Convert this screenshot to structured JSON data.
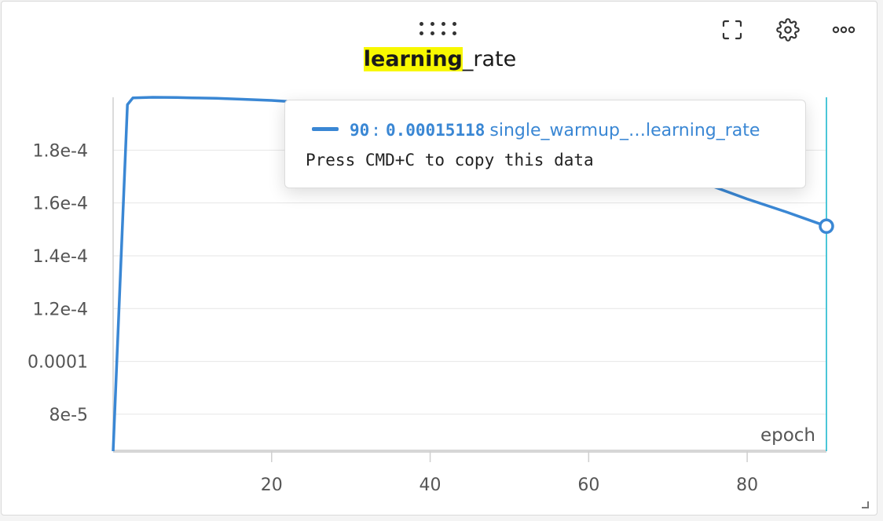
{
  "panel": {
    "title_highlight": "learning",
    "title_rest": "_rate",
    "toolbar": {
      "fullscreen_icon": "fullscreen-icon",
      "settings_icon": "gear-icon",
      "more_icon": "more-horizontal-icon"
    }
  },
  "tooltip": {
    "step": "90",
    "separator": ":",
    "value": "0.00015118",
    "run_name": "single_warmup_…learning_rate",
    "copy_hint": "Press CMD+C to copy this data"
  },
  "chart_data": {
    "type": "line",
    "title": "learning_rate",
    "xlabel": "epoch",
    "ylabel": "",
    "xlim": [
      0,
      90
    ],
    "ylim": [
      6.6e-05,
      0.0002
    ],
    "x_ticks": [
      20,
      40,
      60,
      80
    ],
    "x_tick_labels": [
      "20",
      "40",
      "60",
      "80"
    ],
    "y_ticks": [
      8e-05,
      0.0001,
      0.00012,
      0.00014,
      0.00016,
      0.00018
    ],
    "y_tick_labels": [
      "8e-5",
      "0.0001",
      "1.2e-4",
      "1.4e-4",
      "1.6e-4",
      "1.8e-4"
    ],
    "grid": true,
    "series": [
      {
        "name": "single_warmup_…learning_rate",
        "color": "#3a87d4",
        "x": [
          0,
          1.8,
          2.5,
          5,
          8,
          10,
          13,
          16,
          20,
          25,
          30,
          35,
          40,
          45,
          50,
          55,
          60,
          65,
          70,
          75,
          80,
          85,
          90
        ],
        "y": [
          6.6e-05,
          0.0001972,
          0.0001998,
          0.0002,
          0.0001999,
          0.0001998,
          0.0001996,
          0.0001993,
          0.0001988,
          0.0001979,
          0.0001969,
          0.0001955,
          0.000194,
          0.0001922,
          0.0001902,
          0.000188,
          0.0001856,
          0.0001787,
          0.000172,
          0.000167,
          0.0001615,
          0.0001565,
          0.00015118
        ]
      }
    ],
    "hover": {
      "x": 90,
      "y": 0.00015118,
      "cursor_color": "#4bc6d8"
    }
  }
}
